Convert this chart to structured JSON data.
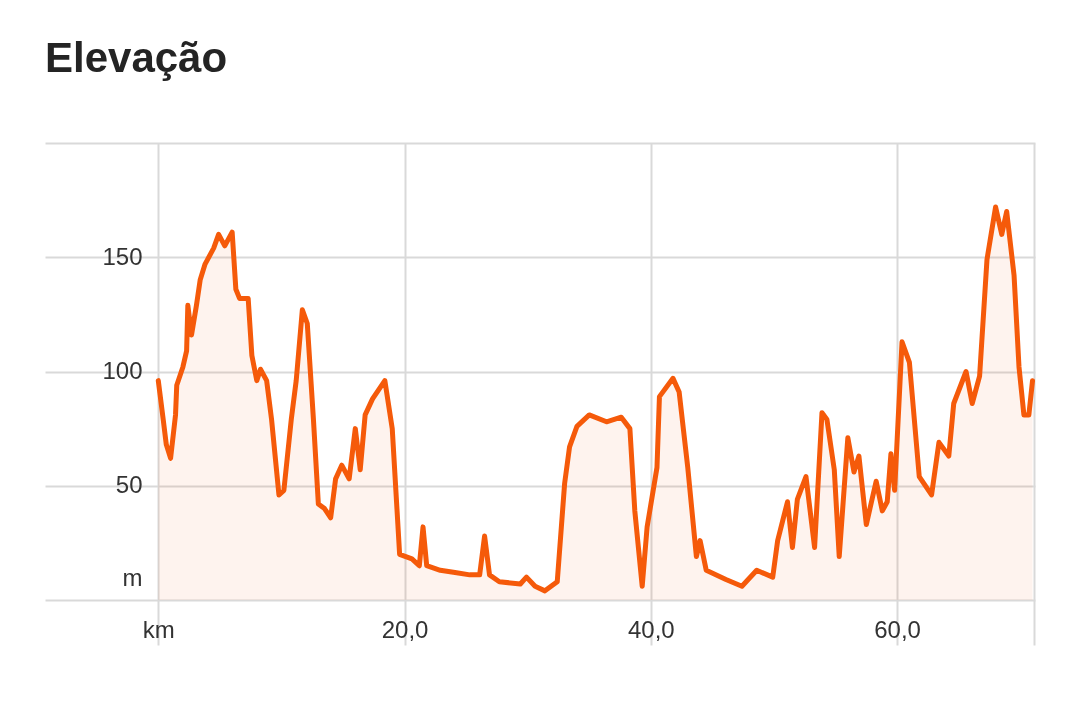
{
  "chart_data": {
    "type": "area",
    "title": "Elevação",
    "x": [
      0,
      0.4,
      0.65,
      1.0,
      1.4,
      1.5,
      2.0,
      2.3,
      2.4,
      2.7,
      3.1,
      3.4,
      3.8,
      4.5,
      4.9,
      5.4,
      6.0,
      6.3,
      6.6,
      7.3,
      7.6,
      8.0,
      8.3,
      8.8,
      9.2,
      9.8,
      10.2,
      10.8,
      11.2,
      11.7,
      12.1,
      12.6,
      13.0,
      13.5,
      14.0,
      14.4,
      14.9,
      15.5,
      16.0,
      16.4,
      16.8,
      17.4,
      18.4,
      19.0,
      19.6,
      20.6,
      21.2,
      21.5,
      21.8,
      22.9,
      24.1,
      25.3,
      26.1,
      26.5,
      26.9,
      27.7,
      29.4,
      29.9,
      30.6,
      31.4,
      32.4,
      33.0,
      33.4,
      34.0,
      35.0,
      36.4,
      37.6,
      38.3,
      38.7,
      39.3,
      39.7,
      40.5,
      40.7,
      41.8,
      42.3,
      43.0,
      43.7,
      44.0,
      44.5,
      46.1,
      47.4,
      48.6,
      49.9,
      50.3,
      51.1,
      51.5,
      51.9,
      52.6,
      53.3,
      53.9,
      54.3,
      54.9,
      55.3,
      56.0,
      56.5,
      56.9,
      57.5,
      58.3,
      58.8,
      59.2,
      59.5,
      59.8,
      60.4,
      61.0,
      61.8,
      62.8,
      63.4,
      64.2,
      64.6,
      65.6,
      66.1,
      66.7,
      67.3,
      68.0,
      68.5,
      68.9,
      69.5,
      69.9,
      70.3,
      70.7,
      71.0
    ],
    "series": [
      {
        "color": "#f55a0a",
        "values": [
          96,
          79,
          68,
          62,
          81,
          94,
          102,
          109,
          129,
          116,
          129,
          140,
          147,
          154,
          160,
          155,
          161,
          136,
          132,
          132,
          107,
          96,
          101,
          96,
          79,
          46,
          48,
          79,
          96,
          127,
          121,
          79,
          42,
          40,
          36,
          53,
          59,
          53,
          75,
          57,
          81,
          88,
          96,
          75,
          20,
          18,
          15,
          32,
          15,
          13,
          12,
          11,
          11,
          28,
          11,
          8,
          7,
          10,
          6,
          4,
          8,
          51,
          67,
          76,
          81,
          78,
          80,
          75,
          39,
          6,
          32,
          58,
          89,
          97,
          91,
          58,
          19,
          26,
          13,
          9,
          6,
          13,
          10,
          26,
          43,
          23,
          44,
          54,
          23,
          82,
          79,
          57,
          19,
          71,
          56,
          63,
          33,
          52,
          39,
          43,
          64,
          48,
          113,
          104,
          54,
          46,
          69,
          63,
          86,
          100,
          86,
          98,
          149,
          172,
          160,
          170,
          142,
          102,
          81,
          81,
          96
        ]
      }
    ],
    "xlim": [
      -9.2,
      71.2
    ],
    "xticks": [
      {
        "value": 0,
        "label": "km"
      },
      {
        "value": 20,
        "label": "20,0"
      },
      {
        "value": 40,
        "label": "40,0"
      },
      {
        "value": 60,
        "label": "60,0"
      },
      {
        "value": 71.1,
        "label": null
      }
    ],
    "ylim": [
      0,
      200
    ],
    "yticks": [
      {
        "value": 0,
        "label": "m"
      },
      50,
      100,
      150,
      {
        "value": 200,
        "label": null
      }
    ],
    "grid": true
  }
}
